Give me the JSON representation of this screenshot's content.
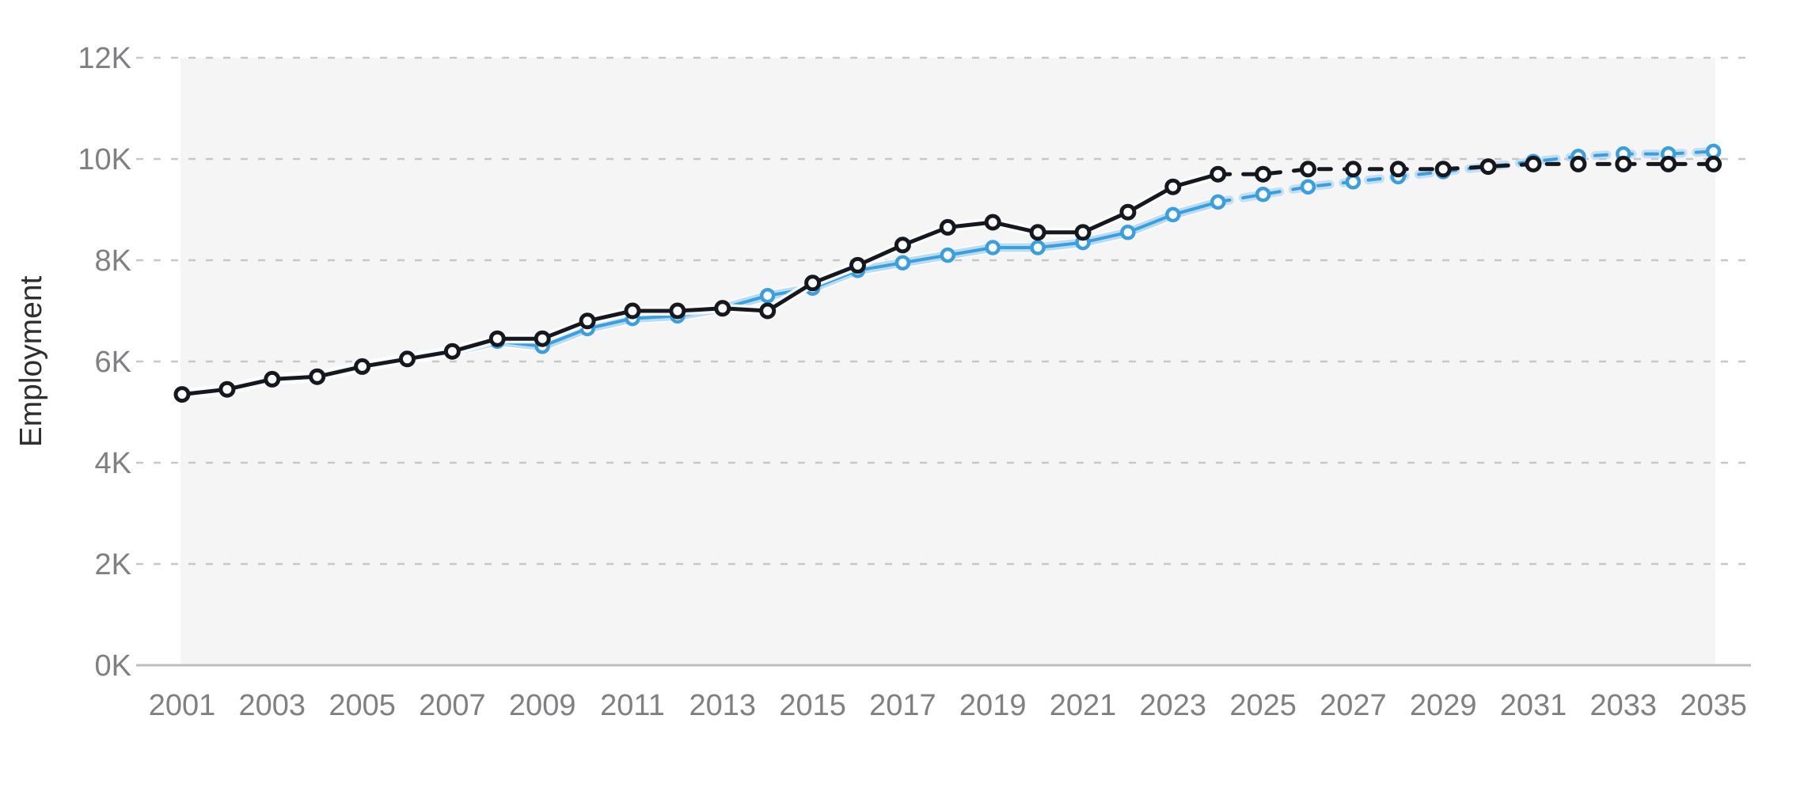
{
  "chart_data": {
    "type": "line",
    "title": "",
    "xlabel": "",
    "ylabel": "Employment",
    "x": [
      2001,
      2002,
      2003,
      2004,
      2005,
      2006,
      2007,
      2008,
      2009,
      2010,
      2011,
      2012,
      2013,
      2014,
      2015,
      2016,
      2017,
      2018,
      2019,
      2020,
      2021,
      2022,
      2023,
      2024,
      2025,
      2026,
      2027,
      2028,
      2029,
      2030,
      2031,
      2032,
      2033,
      2034,
      2035
    ],
    "x_tick_labels": [
      "2001",
      "2003",
      "2005",
      "2007",
      "2009",
      "2011",
      "2013",
      "2015",
      "2017",
      "2019",
      "2021",
      "2023",
      "2025",
      "2027",
      "2029",
      "2031",
      "2033",
      "2035"
    ],
    "y_tick_values": [
      0,
      2,
      4,
      6,
      8,
      10,
      12
    ],
    "y_tick_labels": [
      "0K",
      "2K",
      "4K",
      "6K",
      "8K",
      "10K",
      "12K"
    ],
    "ylim": [
      0,
      12.8
    ],
    "unit": "K",
    "grid": {
      "horizontal_dashed": true,
      "color": "#c7c7c9",
      "axis_line_color": "#bdbdbf"
    },
    "plot_background": "#f5f5f6",
    "tick_label_color": "#808082",
    "ylabel_color": "#2e2e30",
    "projection_dashed_from": 2024,
    "series": [
      {
        "id": "employment-dark",
        "style": "solid history, dashed projection after 2024, open circle markers",
        "color": "#17181f",
        "casing_color": "#ffffff",
        "values": [
          5.35,
          5.45,
          5.65,
          5.7,
          5.9,
          6.05,
          6.2,
          6.45,
          6.45,
          6.8,
          7.0,
          7.0,
          7.05,
          7.0,
          7.55,
          7.9,
          8.3,
          8.65,
          8.75,
          8.55,
          8.55,
          8.95,
          9.45,
          9.7,
          9.7,
          9.8,
          9.8,
          9.8,
          9.8,
          9.85,
          9.9,
          9.9,
          9.9,
          9.9,
          9.9
        ]
      },
      {
        "id": "employment-blue",
        "style": "solid history, dashed projection after 2024, open circle markers",
        "color": "#3b9fdd",
        "halo_color": "#a9d3ef",
        "casing_color": "#ffffff",
        "values": [
          5.35,
          5.45,
          5.65,
          5.7,
          5.9,
          6.05,
          6.2,
          6.4,
          6.3,
          6.65,
          6.85,
          6.9,
          7.05,
          7.3,
          7.45,
          7.8,
          7.95,
          8.1,
          8.25,
          8.25,
          8.35,
          8.55,
          8.9,
          9.15,
          9.3,
          9.45,
          9.55,
          9.65,
          9.75,
          9.85,
          9.95,
          10.05,
          10.1,
          10.1,
          10.15
        ]
      }
    ]
  }
}
